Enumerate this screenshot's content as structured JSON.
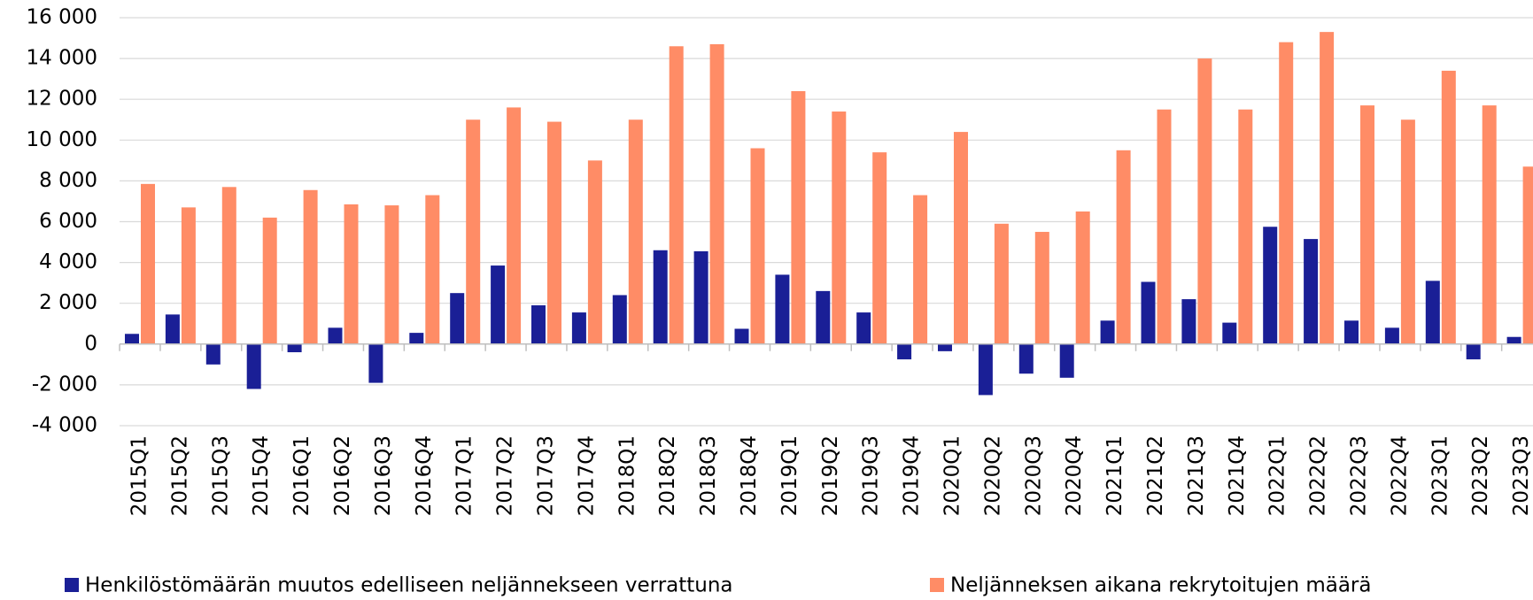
{
  "chart_data": {
    "type": "bar",
    "categories": [
      "2015Q1",
      "2015Q2",
      "2015Q3",
      "2015Q4",
      "2016Q1",
      "2016Q2",
      "2016Q3",
      "2016Q4",
      "2017Q1",
      "2017Q2",
      "2017Q3",
      "2017Q4",
      "2018Q1",
      "2018Q2",
      "2018Q3",
      "2018Q4",
      "2019Q1",
      "2019Q2",
      "2019Q3",
      "2019Q4",
      "2020Q1",
      "2020Q2",
      "2020Q3",
      "2020Q4",
      "2021Q1",
      "2021Q2",
      "2021Q3",
      "2021Q4",
      "2022Q1",
      "2022Q2",
      "2022Q3",
      "2022Q4",
      "2023Q1",
      "2023Q2",
      "2023Q3"
    ],
    "series": [
      {
        "name": "Henkilöstömäärän muutos edelliseen neljännekseen verrattuna",
        "color": "#1a1f96",
        "values": [
          500,
          1450,
          -1000,
          -2200,
          -400,
          800,
          -1900,
          550,
          2500,
          3850,
          1900,
          1550,
          2400,
          4600,
          4550,
          750,
          3400,
          2600,
          1550,
          -750,
          -350,
          -2500,
          -1450,
          -1650,
          1150,
          3050,
          2200,
          1050,
          5750,
          5150,
          1150,
          800,
          3100,
          -750,
          350
        ]
      },
      {
        "name": "Neljänneksen aikana rekrytoitujen määrä",
        "color": "#ff8c66",
        "values": [
          7850,
          6700,
          7700,
          6200,
          7550,
          6850,
          6800,
          7300,
          11000,
          11600,
          10900,
          9000,
          11000,
          14600,
          14700,
          9600,
          12400,
          11400,
          9400,
          7300,
          10400,
          5900,
          5500,
          6500,
          9500,
          11500,
          14000,
          11500,
          14800,
          15300,
          11700,
          11000,
          13400,
          11700,
          8700
        ]
      }
    ],
    "ylim": [
      -4000,
      16000
    ],
    "yticks": [
      {
        "value": -4000,
        "label": "-4 000"
      },
      {
        "value": -2000,
        "label": "-2 000"
      },
      0,
      {
        "value": 2000,
        "label": "2 000"
      },
      {
        "value": 4000,
        "label": "4 000"
      },
      {
        "value": 6000,
        "label": "6 000"
      },
      {
        "value": 8000,
        "label": "8 000"
      },
      {
        "value": 10000,
        "label": "10 000"
      },
      {
        "value": 12000,
        "label": "12 000"
      },
      {
        "value": 14000,
        "label": "14 000"
      },
      {
        "value": 16000,
        "label": "16 000"
      }
    ],
    "grid": true
  }
}
